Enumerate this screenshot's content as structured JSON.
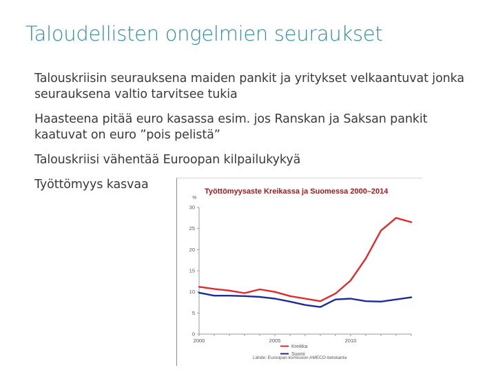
{
  "slide": {
    "title": "Taloudellisten ongelmien seuraukset",
    "bullets": [
      "Talouskriisin seurauksena maiden pankit ja yritykset velkaantuvat jonka seurauksena valtio tarvitsee tukia",
      "Haasteena pitää euro kasassa esim. jos Ranskan ja Saksan pankit kaatuvat on euro ”pois pelistä”",
      "Talouskriisi vähentää Euroopan kilpailukykyä",
      "Työttömyys kasvaa"
    ]
  },
  "chart_data": {
    "type": "line",
    "title": "Työttömyysaste Kreikassa ja Suomessa 2000–2014",
    "ylabel": "%",
    "xlabel": "",
    "x": [
      2000,
      2001,
      2002,
      2003,
      2004,
      2005,
      2006,
      2007,
      2008,
      2009,
      2010,
      2011,
      2012,
      2013,
      2014
    ],
    "xticks": [
      "2000",
      "2005",
      "2010"
    ],
    "yticks": [
      "0",
      "5",
      "10",
      "15",
      "20",
      "25",
      "30"
    ],
    "ylim": [
      0,
      30
    ],
    "grid": false,
    "legend_position": "bottom",
    "series": [
      {
        "name": "Kreikka",
        "color": "#e8262a",
        "values": [
          11.2,
          10.7,
          10.3,
          9.7,
          10.6,
          10.0,
          9.0,
          8.4,
          7.8,
          9.6,
          12.7,
          17.9,
          24.5,
          27.5,
          26.5
        ]
      },
      {
        "name": "Suomi",
        "color": "#1b2a9c",
        "values": [
          9.8,
          9.1,
          9.1,
          9.0,
          8.8,
          8.4,
          7.7,
          6.9,
          6.4,
          8.2,
          8.4,
          7.8,
          7.7,
          8.2,
          8.7
        ]
      }
    ],
    "source": "Lähde: Euroopan komission AMECO-tietokanta"
  }
}
